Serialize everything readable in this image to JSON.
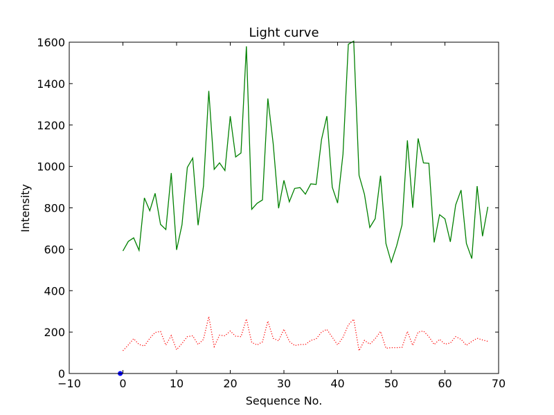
{
  "chart_data": {
    "type": "line",
    "title": "Light curve",
    "xlabel": "Sequence No.",
    "ylabel": "Intensity",
    "xlim": [
      -10,
      70
    ],
    "ylim": [
      0,
      1600
    ],
    "xticks": [
      -10,
      0,
      10,
      20,
      30,
      40,
      50,
      60,
      70
    ],
    "yticks": [
      0,
      200,
      400,
      600,
      800,
      1000,
      1200,
      1400,
      1600
    ],
    "grid": false,
    "series": [
      {
        "color": "#008000",
        "style": "solid",
        "x": [
          0,
          1,
          2,
          3,
          4,
          5,
          6,
          7,
          8,
          9,
          10,
          11,
          12,
          13,
          14,
          15,
          16,
          17,
          18,
          19,
          20,
          21,
          22,
          23,
          24,
          25,
          26,
          27,
          28,
          29,
          30,
          31,
          32,
          33,
          34,
          35,
          36,
          37,
          38,
          39,
          40,
          41,
          42,
          43,
          44,
          45,
          46,
          47,
          48,
          49,
          50,
          51,
          52,
          53,
          54,
          55,
          56,
          57,
          58,
          59,
          60,
          61,
          62,
          63,
          64,
          65,
          66,
          67,
          68
        ],
        "values": [
          592,
          638,
          655,
          595,
          848,
          786,
          870,
          720,
          695,
          968,
          597,
          718,
          995,
          1040,
          716,
          905,
          1365,
          986,
          1017,
          980,
          1243,
          1046,
          1065,
          1580,
          793,
          822,
          838,
          1328,
          1110,
          798,
          933,
          829,
          894,
          898,
          866,
          916,
          913,
          1130,
          1243,
          900,
          823,
          1060,
          1590,
          1605,
          957,
          865,
          705,
          748,
          955,
          628,
          537,
          617,
          717,
          1126,
          800,
          1135,
          1017,
          1015,
          633,
          767,
          747,
          636,
          814,
          886,
          628,
          555,
          905,
          663,
          805
        ]
      },
      {
        "color": "#ff0000",
        "style": "dotted",
        "x": [
          0,
          1,
          2,
          3,
          4,
          5,
          6,
          7,
          8,
          9,
          10,
          11,
          12,
          13,
          14,
          15,
          16,
          17,
          18,
          19,
          20,
          21,
          22,
          23,
          24,
          25,
          26,
          27,
          28,
          29,
          30,
          31,
          32,
          33,
          34,
          35,
          36,
          37,
          38,
          39,
          40,
          41,
          42,
          43,
          44,
          45,
          46,
          47,
          48,
          49,
          50,
          51,
          52,
          53,
          54,
          55,
          56,
          57,
          58,
          59,
          60,
          61,
          62,
          63,
          64,
          65,
          66,
          67,
          68
        ],
        "values": [
          110,
          138,
          168,
          140,
          133,
          170,
          198,
          203,
          137,
          183,
          115,
          145,
          178,
          182,
          140,
          165,
          275,
          130,
          185,
          182,
          205,
          180,
          178,
          263,
          150,
          138,
          153,
          253,
          170,
          158,
          214,
          155,
          135,
          140,
          140,
          160,
          167,
          200,
          213,
          175,
          138,
          175,
          235,
          262,
          110,
          160,
          142,
          168,
          203,
          122,
          125,
          125,
          126,
          203,
          136,
          200,
          205,
          178,
          140,
          165,
          142,
          147,
          178,
          165,
          136,
          155,
          170,
          162,
          155
        ]
      },
      {
        "color": "#0000ff",
        "style": "marker",
        "x": [
          -0.5
        ],
        "values": [
          0
        ]
      }
    ]
  }
}
